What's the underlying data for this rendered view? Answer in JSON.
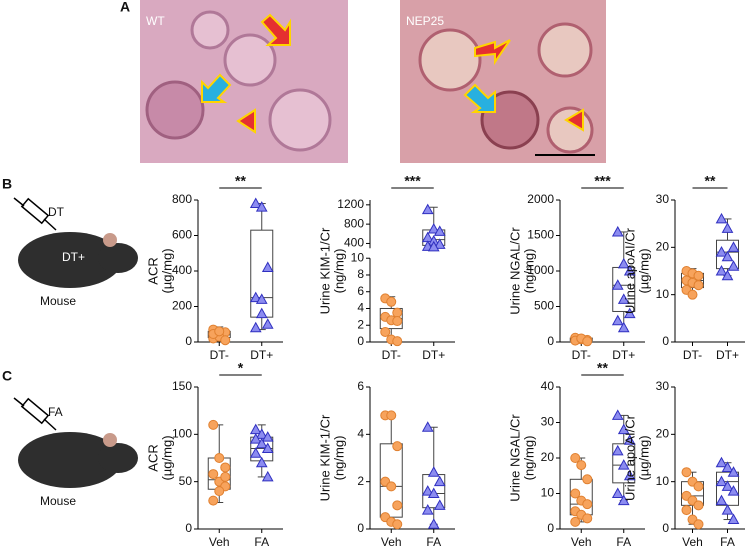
{
  "panels": {
    "A": {
      "label": "A",
      "images": [
        {
          "label": "WT"
        },
        {
          "label": "NEP25"
        }
      ]
    },
    "B": {
      "label": "B",
      "syringe": "DT",
      "mouse_label": "DT+",
      "caption": "Mouse"
    },
    "C": {
      "label": "C",
      "syringe": "FA",
      "caption": "Mouse"
    }
  },
  "chart_data": [
    {
      "type": "box",
      "ylabel": [
        "ACR",
        "(µg/mg)"
      ],
      "categories": [
        "DT-",
        "DT+"
      ],
      "ylim": [
        0,
        800
      ],
      "yticks": [
        0,
        200,
        400,
        600,
        800
      ],
      "significance": "**",
      "groups": [
        {
          "color": "#f7a35c",
          "marker": "circle",
          "values": [
            20,
            40,
            55,
            70,
            30,
            10,
            45,
            60
          ],
          "box": {
            "min": 5,
            "q1": 25,
            "median": 40,
            "q3": 60,
            "max": 85
          }
        },
        {
          "color": "#8c8cf0",
          "marker": "triangle",
          "values": [
            780,
            760,
            420,
            250,
            240,
            100,
            80,
            160
          ],
          "box": {
            "min": 70,
            "q1": 140,
            "median": 250,
            "q3": 630,
            "max": 780
          }
        }
      ]
    },
    {
      "type": "box",
      "ylabel": [
        "Urine KIM-1/Cr",
        "(ng/mg)"
      ],
      "categories": [
        "DT-",
        "DT+"
      ],
      "significance": "***",
      "y_segments": [
        {
          "ylim": [
            0,
            10
          ],
          "yticks": [
            0,
            2,
            4,
            6,
            8,
            10
          ]
        },
        {
          "ylim": [
            300,
            1300
          ],
          "yticks": [
            400,
            800,
            1200
          ]
        }
      ],
      "groups": [
        {
          "color": "#f7a35c",
          "marker": "circle",
          "values": [
            5.2,
            4.8,
            3.5,
            3.0,
            2.6,
            2.5,
            1.2,
            0.3,
            0.1
          ],
          "box": {
            "min": 0.1,
            "q1": 1.6,
            "median": 2.8,
            "q3": 4.0,
            "max": 5.4
          }
        },
        {
          "color": "#8c8cf0",
          "marker": "triangle",
          "values": [
            1100,
            700,
            650,
            520,
            450,
            380,
            340,
            330
          ],
          "box": {
            "min": 320,
            "q1": 360,
            "median": 480,
            "q3": 680,
            "max": 1150
          }
        }
      ]
    },
    {
      "type": "box",
      "ylabel": [
        "Urine NGAL/Cr",
        "(ng/mg)"
      ],
      "categories": [
        "DT-",
        "DT+"
      ],
      "ylim": [
        0,
        2000
      ],
      "yticks": [
        0,
        500,
        1000,
        1500,
        2000
      ],
      "significance": "***",
      "groups": [
        {
          "color": "#f7a35c",
          "marker": "circle",
          "values": [
            60,
            40,
            30,
            20,
            50,
            10
          ],
          "box": {
            "min": 5,
            "q1": 20,
            "median": 35,
            "q3": 55,
            "max": 70
          }
        },
        {
          "color": "#8c8cf0",
          "marker": "triangle",
          "values": [
            1550,
            1100,
            1000,
            800,
            600,
            400,
            300,
            200
          ],
          "box": {
            "min": 180,
            "q1": 430,
            "median": 800,
            "q3": 1050,
            "max": 1550
          }
        }
      ]
    },
    {
      "type": "box",
      "ylabel": [
        "Urine apoAI/Cr",
        "(µg/mg)"
      ],
      "categories": [
        "DT-",
        "DT+"
      ],
      "ylim": [
        0,
        30
      ],
      "yticks": [
        0,
        10,
        20,
        30
      ],
      "significance": "**",
      "groups": [
        {
          "color": "#f7a35c",
          "marker": "circle",
          "values": [
            15,
            14.5,
            14,
            13,
            12.5,
            12,
            11,
            10
          ],
          "box": {
            "min": 10,
            "q1": 11.5,
            "median": 13,
            "q3": 14.5,
            "max": 15.5
          }
        },
        {
          "color": "#8c8cf0",
          "marker": "triangle",
          "values": [
            26,
            24,
            20,
            19,
            18,
            16,
            15,
            14
          ],
          "box": {
            "min": 14,
            "q1": 15.5,
            "median": 19,
            "q3": 21.5,
            "max": 26
          }
        }
      ]
    },
    {
      "type": "box",
      "ylabel": [
        "ACR",
        "(µg/mg)"
      ],
      "categories": [
        "Veh",
        "FA"
      ],
      "ylim": [
        0,
        150
      ],
      "yticks": [
        0,
        50,
        100,
        150
      ],
      "significance": "*",
      "groups": [
        {
          "color": "#f7a35c",
          "marker": "circle",
          "values": [
            110,
            75,
            65,
            58,
            50,
            45,
            30,
            40,
            55
          ],
          "box": {
            "min": 28,
            "q1": 42,
            "median": 52,
            "q3": 75,
            "max": 110
          }
        },
        {
          "color": "#8c8cf0",
          "marker": "triangle",
          "values": [
            105,
            100,
            97,
            95,
            90,
            85,
            80,
            70,
            55
          ],
          "box": {
            "min": 55,
            "q1": 72,
            "median": 85,
            "q3": 97,
            "max": 110
          }
        }
      ]
    },
    {
      "type": "box",
      "ylabel": [
        "Urine KIM-1/Cr",
        "(ng/mg)"
      ],
      "categories": [
        "Veh",
        "FA"
      ],
      "ylim": [
        0,
        6
      ],
      "yticks": [
        0,
        2,
        4,
        6
      ],
      "groups": [
        {
          "color": "#f7a35c",
          "marker": "circle",
          "values": [
            4.8,
            4.8,
            3.5,
            2.0,
            1.8,
            1.0,
            0.5,
            0.3,
            0.2
          ],
          "box": {
            "min": 0.2,
            "q1": 0.5,
            "median": 1.8,
            "q3": 3.6,
            "max": 4.8
          }
        },
        {
          "color": "#8c8cf0",
          "marker": "triangle",
          "values": [
            4.3,
            2.4,
            2.0,
            1.6,
            1.5,
            1.0,
            0.8,
            0.2
          ],
          "box": {
            "min": 0.2,
            "q1": 0.9,
            "median": 1.5,
            "q3": 2.3,
            "max": 4.3
          }
        }
      ]
    },
    {
      "type": "box",
      "ylabel": [
        "Urine NGAL/Cr",
        "(ng/mg)"
      ],
      "categories": [
        "Veh",
        "FA"
      ],
      "ylim": [
        0,
        40
      ],
      "yticks": [
        0,
        10,
        20,
        30,
        40
      ],
      "significance": "**",
      "groups": [
        {
          "color": "#f7a35c",
          "marker": "circle",
          "values": [
            20,
            18,
            14,
            10,
            8,
            7,
            5,
            4,
            3,
            2
          ],
          "box": {
            "min": 2,
            "q1": 4,
            "median": 7,
            "q3": 14,
            "max": 20
          }
        },
        {
          "color": "#8c8cf0",
          "marker": "triangle",
          "values": [
            32,
            28,
            25,
            22,
            18,
            15,
            10,
            8
          ],
          "box": {
            "min": 8,
            "q1": 13,
            "median": 18,
            "q3": 24,
            "max": 32
          }
        }
      ]
    },
    {
      "type": "box",
      "ylabel": [
        "Urine apoAI/Cr",
        "(µg/mg)"
      ],
      "categories": [
        "Veh",
        "FA"
      ],
      "ylim": [
        0,
        30
      ],
      "yticks": [
        0,
        10,
        20,
        30
      ],
      "groups": [
        {
          "color": "#f7a35c",
          "marker": "circle",
          "values": [
            12,
            10,
            9,
            7,
            6,
            5,
            4,
            2,
            1
          ],
          "box": {
            "min": 1,
            "q1": 5,
            "median": 7,
            "q3": 10,
            "max": 12
          }
        },
        {
          "color": "#8c8cf0",
          "marker": "triangle",
          "values": [
            14,
            13,
            12,
            10,
            9,
            8,
            6,
            4,
            2
          ],
          "box": {
            "min": 2,
            "q1": 5,
            "median": 10,
            "q3": 12,
            "max": 14
          }
        }
      ]
    }
  ]
}
